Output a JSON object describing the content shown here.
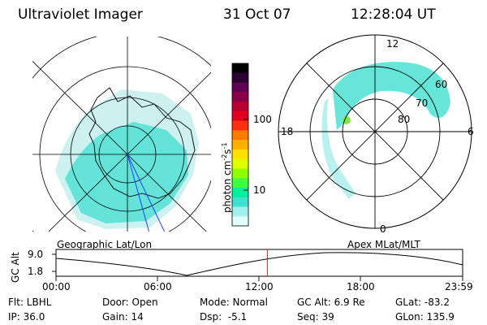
{
  "header": {
    "instrument": "Ultraviolet Imager",
    "date": "31 Oct 07",
    "time": "12:28:04 UT"
  },
  "geo_panel": {
    "label": "Geographic Lat/Lon"
  },
  "mag_panel": {
    "label": "Apex MLat/MLT",
    "mlt_labels": [
      "12",
      "18",
      "6",
      "0"
    ],
    "lat_labels": [
      "60",
      "70",
      "80"
    ]
  },
  "colorbar": {
    "unit_label": "photon cm",
    "unit_exp1": "-2",
    "unit_mid": "s",
    "unit_exp2": "-1",
    "ticks": [
      "100",
      "10"
    ],
    "colors": [
      "#000000",
      "#2a0030",
      "#600050",
      "#8a0048",
      "#b80030",
      "#e00020",
      "#ff3010",
      "#ff7a00",
      "#ffb000",
      "#ffe000",
      "#e0ff00",
      "#90ff00",
      "#40ff40",
      "#00f0a0",
      "#40e0d0",
      "#a0f0f0",
      "#e0ffff"
    ]
  },
  "altitude_plot": {
    "ylabel": "GC Alt",
    "ytick_top": "9.0",
    "ytick_bottom": "1.8",
    "xticks": [
      "00:00",
      "06:00",
      "12:00",
      "18:00",
      "23:59"
    ],
    "current_time_marker": "12:28",
    "marker_color": "#e02020"
  },
  "status": {
    "filter": "Flt: LBHL",
    "ip": "IP: 36.0",
    "door": "Door: Open",
    "gain": "Gain: 14",
    "mode": "Mode: Normal",
    "dsp": "Dsp:  -5.1",
    "gc_alt": "GC Alt: 6.9 Re",
    "seq": "Seq: 39",
    "glat": "GLat: -83.2",
    "glon": "GLon: 135.9"
  }
}
